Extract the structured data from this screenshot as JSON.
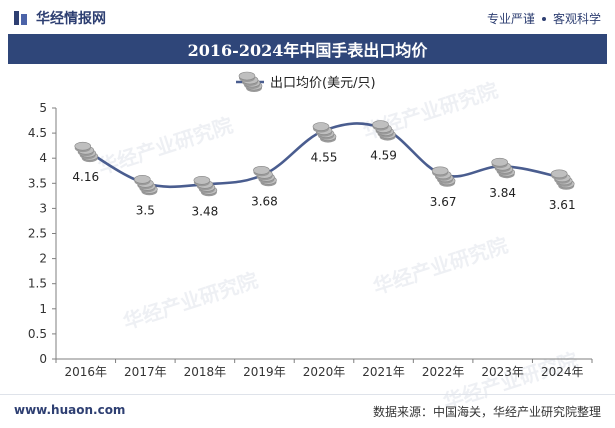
{
  "header": {
    "brand": "华经情报网",
    "slogan_left": "专业严谨",
    "slogan_right": "客观科学"
  },
  "title": "2016-2024年中国手表出口均价",
  "footer": {
    "site": "www.huaon.com",
    "source": "数据来源：中国海关，华经产业研究院整理"
  },
  "watermark": "华经产业研究院",
  "colors": {
    "title_bg": "#2f4679",
    "line": "#4a5d8f",
    "coin": "#bfbfbf"
  },
  "chart_data": {
    "type": "line",
    "title": "2016-2024年中国手表出口均价",
    "categories": [
      "2016年",
      "2017年",
      "2018年",
      "2019年",
      "2020年",
      "2021年",
      "2022年",
      "2023年",
      "2024年"
    ],
    "series": [
      {
        "name": "出口均价(美元/只)",
        "values": [
          4.16,
          3.5,
          3.48,
          3.68,
          4.55,
          4.59,
          3.67,
          3.84,
          3.61
        ]
      }
    ],
    "data_labels": [
      "4.16",
      "3.5",
      "3.48",
      "3.68",
      "4.55",
      "4.59",
      "3.67",
      "3.84",
      "3.61"
    ],
    "y_ticks": [
      "0",
      "0.5",
      "1",
      "1.5",
      "2",
      "2.5",
      "3",
      "3.5",
      "4",
      "4.5",
      "5"
    ],
    "ylim": [
      0,
      5
    ],
    "grid": false,
    "legend": "top-center",
    "marker": "coin-stack"
  }
}
